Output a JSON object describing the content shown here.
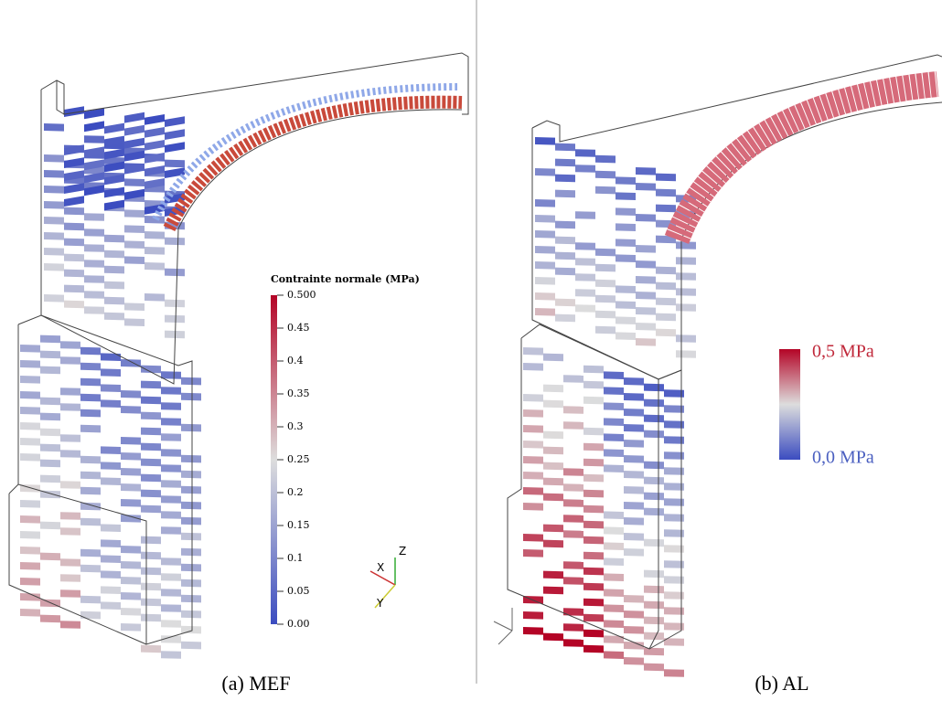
{
  "panel_a": {
    "colorbar": {
      "title": "Contrainte normale (MPa)",
      "ticks": [
        "0.500",
        "0.45",
        "0.4",
        "0.35",
        "0.3",
        "0.25",
        "0.2",
        "0.15",
        "0.1",
        "0.05",
        "0.00"
      ]
    },
    "axes": {
      "x": "X",
      "y": "Y",
      "z": "Z"
    },
    "caption": "(a)  MEF"
  },
  "panel_b": {
    "colorbar": {
      "max": "0,5 MPa",
      "min": "0,0 MPa"
    },
    "caption": "(b)  AL"
  }
}
